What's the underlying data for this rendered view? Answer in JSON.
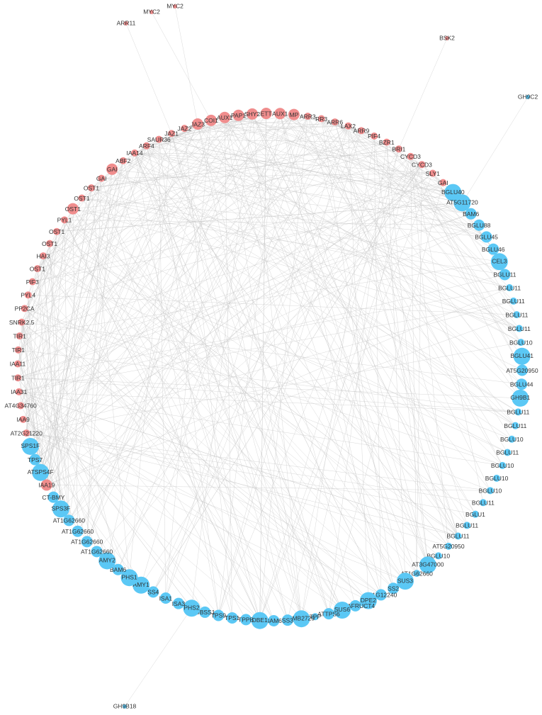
{
  "nodes": [
    {
      "label": "AUX1",
      "color": "#f08d8d"
    },
    {
      "label": "MP",
      "color": "#f08d8d"
    },
    {
      "label": "ARR3",
      "color": "#f08d8d"
    },
    {
      "label": "RR3",
      "color": "#f08d8d"
    },
    {
      "label": "ARR6",
      "color": "#f08d8d"
    },
    {
      "label": "LAX2",
      "color": "#f08d8d"
    },
    {
      "label": "ARR9",
      "color": "#f08d8d"
    },
    {
      "label": "PIF4",
      "color": "#f08d8d"
    },
    {
      "label": "BZR1",
      "color": "#f08d8d"
    },
    {
      "label": "BRI1",
      "color": "#f08d8d"
    },
    {
      "label": "CYCD3",
      "color": "#f08d8d"
    },
    {
      "label": "CYCD3",
      "color": "#f08d8d"
    },
    {
      "label": "SLY1",
      "color": "#f08d8d"
    },
    {
      "label": "GAI",
      "color": "#f08d8d"
    },
    {
      "label": "BGLU40",
      "color": "#5bc8f5"
    },
    {
      "label": "AT5G11720",
      "color": "#5bc8f5"
    },
    {
      "label": "BAM6",
      "color": "#5bc8f5"
    },
    {
      "label": "BGLU88",
      "color": "#5bc8f5"
    },
    {
      "label": "BGLU45",
      "color": "#5bc8f5"
    },
    {
      "label": "BGLU46",
      "color": "#5bc8f5"
    },
    {
      "label": "CEL3",
      "color": "#5bc8f5"
    },
    {
      "label": "BGLU11",
      "color": "#5bc8f5"
    },
    {
      "label": "BGLU11",
      "color": "#5bc8f5"
    },
    {
      "label": "BGLU11",
      "color": "#5bc8f5"
    },
    {
      "label": "BGLU11",
      "color": "#5bc8f5"
    },
    {
      "label": "BGLU11",
      "color": "#5bc8f5"
    },
    {
      "label": "BGLU10",
      "color": "#5bc8f5"
    },
    {
      "label": "BGLU41",
      "color": "#5bc8f5"
    },
    {
      "label": "AT5G20950",
      "color": "#5bc8f5"
    },
    {
      "label": "BGLU44",
      "color": "#5bc8f5"
    },
    {
      "label": "GH9B1",
      "color": "#5bc8f5"
    },
    {
      "label": "BGLU11",
      "color": "#5bc8f5"
    },
    {
      "label": "BGLU11",
      "color": "#5bc8f5"
    },
    {
      "label": "BGLU10",
      "color": "#5bc8f5"
    },
    {
      "label": "BGLU11",
      "color": "#5bc8f5"
    },
    {
      "label": "BGLU10",
      "color": "#5bc8f5"
    },
    {
      "label": "BGLU10",
      "color": "#5bc8f5"
    },
    {
      "label": "BGLU10",
      "color": "#5bc8f5"
    },
    {
      "label": "BGLU11",
      "color": "#5bc8f5"
    },
    {
      "label": "BGLU1",
      "color": "#5bc8f5"
    },
    {
      "label": "BGLU11",
      "color": "#5bc8f5"
    },
    {
      "label": "BGLU11",
      "color": "#5bc8f5"
    },
    {
      "label": "AT5G20950",
      "color": "#5bc8f5"
    },
    {
      "label": "BGLU10",
      "color": "#5bc8f5"
    },
    {
      "label": "AT3G47000",
      "color": "#5bc8f5"
    },
    {
      "label": "AT1G62660",
      "color": "#5bc8f5"
    },
    {
      "label": "SUS3",
      "color": "#5bc8f5"
    },
    {
      "label": "SS2",
      "color": "#5bc8f5"
    },
    {
      "label": "AT1G12240",
      "color": "#5bc8f5"
    },
    {
      "label": "DPE2",
      "color": "#5bc8f5"
    },
    {
      "label": "BETAFRUCT4",
      "color": "#5bc8f5"
    },
    {
      "label": "SUS6",
      "color": "#5bc8f5"
    },
    {
      "label": "ATTPS6",
      "color": "#5bc8f5"
    },
    {
      "label": "TPP",
      "color": "#5bc8f5"
    },
    {
      "label": "EMB2729",
      "color": "#5bc8f5"
    },
    {
      "label": "SS3",
      "color": "#5bc8f5"
    },
    {
      "label": "BAM6",
      "color": "#5bc8f5"
    },
    {
      "label": "DBE1",
      "color": "#5bc8f5"
    },
    {
      "label": "TPPB",
      "color": "#5bc8f5"
    },
    {
      "label": "TPS1",
      "color": "#5bc8f5"
    },
    {
      "label": "TPS9",
      "color": "#5bc8f5"
    },
    {
      "label": "GBSS1",
      "color": "#5bc8f5"
    },
    {
      "label": "PHS2",
      "color": "#5bc8f5"
    },
    {
      "label": "ISA3",
      "color": "#5bc8f5"
    },
    {
      "label": "ISA1",
      "color": "#5bc8f5"
    },
    {
      "label": "SS4",
      "color": "#5bc8f5"
    },
    {
      "label": "AMY1",
      "color": "#5bc8f5"
    },
    {
      "label": "PHS1",
      "color": "#5bc8f5"
    },
    {
      "label": "BAM6",
      "color": "#5bc8f5"
    },
    {
      "label": "AMY2",
      "color": "#5bc8f5"
    },
    {
      "label": "AT1G62660",
      "color": "#5bc8f5"
    },
    {
      "label": "AT1G62660",
      "color": "#5bc8f5"
    },
    {
      "label": "AT1G62660",
      "color": "#5bc8f5"
    },
    {
      "label": "AT1G62660",
      "color": "#5bc8f5"
    },
    {
      "label": "SPS3F",
      "color": "#5bc8f5"
    },
    {
      "label": "CT-BMY",
      "color": "#5bc8f5"
    },
    {
      "label": "IAA19",
      "color": "#f08d8d"
    },
    {
      "label": "ATSPS4F",
      "color": "#5bc8f5"
    },
    {
      "label": "TPS7",
      "color": "#5bc8f5"
    },
    {
      "label": "SPS1F",
      "color": "#5bc8f5"
    },
    {
      "label": "AT2G21220",
      "color": "#f08d8d"
    },
    {
      "label": "IAA9",
      "color": "#f08d8d"
    },
    {
      "label": "AT4G34760",
      "color": "#f08d8d"
    },
    {
      "label": "IAA31",
      "color": "#f08d8d"
    },
    {
      "label": "TIR1",
      "color": "#f08d8d"
    },
    {
      "label": "IAA11",
      "color": "#f08d8d"
    },
    {
      "label": "TIR1",
      "color": "#f08d8d"
    },
    {
      "label": "TIR1",
      "color": "#f08d8d"
    },
    {
      "label": "SNRK2.5",
      "color": "#f08d8d"
    },
    {
      "label": "PP2CA",
      "color": "#f08d8d"
    },
    {
      "label": "PYL4",
      "color": "#f08d8d"
    },
    {
      "label": "PIF3",
      "color": "#f08d8d"
    },
    {
      "label": "OST1",
      "color": "#f08d8d"
    },
    {
      "label": "HAI3",
      "color": "#f08d8d"
    },
    {
      "label": "OST1",
      "color": "#f08d8d"
    },
    {
      "label": "OST1",
      "color": "#f08d8d"
    },
    {
      "label": "PYL1",
      "color": "#f08d8d"
    },
    {
      "label": "OST1",
      "color": "#f08d8d"
    },
    {
      "label": "OST1",
      "color": "#f08d8d"
    },
    {
      "label": "OST1",
      "color": "#f08d8d"
    },
    {
      "label": "GAI",
      "color": "#f08d8d"
    },
    {
      "label": "GAI",
      "color": "#f08d8d"
    },
    {
      "label": "ABF2",
      "color": "#f08d8d"
    },
    {
      "label": "IAA14",
      "color": "#f08d8d"
    },
    {
      "label": "ARF4",
      "color": "#f08d8d"
    },
    {
      "label": "SAUR36",
      "color": "#f08d8d"
    },
    {
      "label": "JAZ1",
      "color": "#f08d8d"
    },
    {
      "label": "JAZ2",
      "color": "#f08d8d"
    },
    {
      "label": "JAZ3",
      "color": "#f08d8d"
    },
    {
      "label": "COI1",
      "color": "#f08d8d"
    },
    {
      "label": "AUX1",
      "color": "#f08d8d"
    },
    {
      "label": "PAP1",
      "color": "#f08d8d"
    },
    {
      "label": "SHY2",
      "color": "#f08d8d"
    },
    {
      "label": "ETT",
      "color": "#f08d8d"
    }
  ],
  "outer_nodes": [
    {
      "label": "MYC2",
      "color": "#f08d8d"
    },
    {
      "label": "MYC2",
      "color": "#f08d8d"
    },
    {
      "label": "ARR11",
      "color": "#f08d8d"
    },
    {
      "label": "BSK2",
      "color": "#f08d8d"
    },
    {
      "label": "GH9C2",
      "color": "#5bc8f5"
    },
    {
      "label": "GH9B18",
      "color": "#5bc8f5"
    }
  ]
}
